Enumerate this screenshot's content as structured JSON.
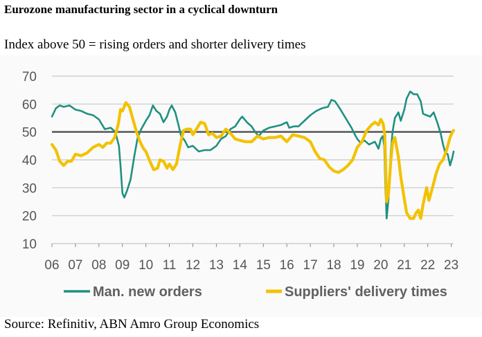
{
  "chart_data": {
    "type": "line",
    "title": "Eurozone manufacturing sector in a cyclical downturn",
    "subtitle": "Index above 50 = rising orders and shorter delivery times",
    "source": "Source: Refinitiv, ABN Amro Group Economics",
    "xlabel": "",
    "ylabel": "",
    "xlim": [
      2006,
      2023.1
    ],
    "ylim": [
      10,
      70
    ],
    "yticks": [
      10,
      20,
      30,
      40,
      50,
      60,
      70
    ],
    "xticks": [
      {
        "value": 2006,
        "label": "06"
      },
      {
        "value": 2007,
        "label": "07"
      },
      {
        "value": 2008,
        "label": "08"
      },
      {
        "value": 2009,
        "label": "09"
      },
      {
        "value": 2010,
        "label": "10"
      },
      {
        "value": 2011,
        "label": "11"
      },
      {
        "value": 2012,
        "label": "12"
      },
      {
        "value": 2013,
        "label": "13"
      },
      {
        "value": 2014,
        "label": "14"
      },
      {
        "value": 2015,
        "label": "15"
      },
      {
        "value": 2016,
        "label": "16"
      },
      {
        "value": 2017,
        "label": "17"
      },
      {
        "value": 2018,
        "label": "18"
      },
      {
        "value": 2019,
        "label": "19"
      },
      {
        "value": 2020,
        "label": "20"
      },
      {
        "value": 2021,
        "label": "21"
      },
      {
        "value": 2022,
        "label": "22"
      },
      {
        "value": 2023,
        "label": "23"
      }
    ],
    "reference_line": 50,
    "grid": true,
    "legend_position": "bottom",
    "series": [
      {
        "name": "Man. new orders",
        "color": "#1f9080",
        "points": [
          [
            2006.0,
            55.5
          ],
          [
            2006.17,
            58.5
          ],
          [
            2006.33,
            59.5
          ],
          [
            2006.5,
            59.0
          ],
          [
            2006.75,
            59.5
          ],
          [
            2007.0,
            58.0
          ],
          [
            2007.25,
            57.5
          ],
          [
            2007.5,
            56.5
          ],
          [
            2007.75,
            56.0
          ],
          [
            2008.0,
            54.5
          ],
          [
            2008.25,
            51.0
          ],
          [
            2008.5,
            51.5
          ],
          [
            2008.7,
            50.0
          ],
          [
            2008.85,
            45.0
          ],
          [
            2008.92,
            38.0
          ],
          [
            2009.0,
            28.0
          ],
          [
            2009.08,
            26.5
          ],
          [
            2009.2,
            29.0
          ],
          [
            2009.35,
            33.0
          ],
          [
            2009.5,
            41.0
          ],
          [
            2009.65,
            48.0
          ],
          [
            2009.8,
            51.0
          ],
          [
            2010.0,
            54.0
          ],
          [
            2010.15,
            56.0
          ],
          [
            2010.3,
            59.5
          ],
          [
            2010.45,
            57.5
          ],
          [
            2010.6,
            56.5
          ],
          [
            2010.75,
            53.5
          ],
          [
            2010.9,
            55.5
          ],
          [
            2011.0,
            58.0
          ],
          [
            2011.1,
            59.5
          ],
          [
            2011.25,
            57.0
          ],
          [
            2011.4,
            52.0
          ],
          [
            2011.5,
            48.5
          ],
          [
            2011.65,
            47.0
          ],
          [
            2011.8,
            44.5
          ],
          [
            2012.0,
            45.0
          ],
          [
            2012.25,
            43.0
          ],
          [
            2012.5,
            43.5
          ],
          [
            2012.75,
            43.5
          ],
          [
            2013.0,
            45.0
          ],
          [
            2013.2,
            47.5
          ],
          [
            2013.4,
            48.5
          ],
          [
            2013.6,
            51.0
          ],
          [
            2013.8,
            52.0
          ],
          [
            2014.0,
            54.5
          ],
          [
            2014.1,
            55.5
          ],
          [
            2014.3,
            53.5
          ],
          [
            2014.5,
            52.0
          ],
          [
            2014.65,
            50.0
          ],
          [
            2014.8,
            48.5
          ],
          [
            2015.0,
            50.5
          ],
          [
            2015.25,
            51.5
          ],
          [
            2015.5,
            52.0
          ],
          [
            2015.75,
            52.5
          ],
          [
            2016.0,
            53.5
          ],
          [
            2016.1,
            51.5
          ],
          [
            2016.3,
            52.0
          ],
          [
            2016.5,
            52.0
          ],
          [
            2016.75,
            54.0
          ],
          [
            2017.0,
            56.0
          ],
          [
            2017.25,
            57.5
          ],
          [
            2017.5,
            58.5
          ],
          [
            2017.75,
            59.0
          ],
          [
            2017.9,
            61.5
          ],
          [
            2018.05,
            61.0
          ],
          [
            2018.25,
            58.5
          ],
          [
            2018.5,
            55.0
          ],
          [
            2018.75,
            51.5
          ],
          [
            2018.9,
            49.0
          ],
          [
            2019.0,
            47.5
          ],
          [
            2019.15,
            46.0
          ],
          [
            2019.3,
            47.0
          ],
          [
            2019.5,
            45.5
          ],
          [
            2019.75,
            46.5
          ],
          [
            2019.9,
            44.0
          ],
          [
            2020.0,
            47.5
          ],
          [
            2020.08,
            48.5
          ],
          [
            2020.15,
            45.0
          ],
          [
            2020.2,
            30.0
          ],
          [
            2020.25,
            19.0
          ],
          [
            2020.33,
            26.0
          ],
          [
            2020.42,
            42.0
          ],
          [
            2020.5,
            50.0
          ],
          [
            2020.6,
            55.0
          ],
          [
            2020.75,
            57.0
          ],
          [
            2020.85,
            54.0
          ],
          [
            2021.0,
            58.0
          ],
          [
            2021.1,
            62.0
          ],
          [
            2021.25,
            64.5
          ],
          [
            2021.4,
            63.5
          ],
          [
            2021.55,
            63.5
          ],
          [
            2021.7,
            61.0
          ],
          [
            2021.8,
            56.5
          ],
          [
            2021.95,
            56.0
          ],
          [
            2022.1,
            55.5
          ],
          [
            2022.25,
            57.0
          ],
          [
            2022.4,
            53.5
          ],
          [
            2022.55,
            49.5
          ],
          [
            2022.65,
            45.5
          ],
          [
            2022.75,
            42.5
          ],
          [
            2022.85,
            42.0
          ],
          [
            2022.95,
            38.0
          ],
          [
            2023.05,
            41.0
          ],
          [
            2023.1,
            43.0
          ]
        ]
      },
      {
        "name": "Suppliers' delivery times",
        "color": "#f2c200",
        "points": [
          [
            2006.0,
            45.5
          ],
          [
            2006.17,
            43.5
          ],
          [
            2006.33,
            39.5
          ],
          [
            2006.5,
            38.0
          ],
          [
            2006.67,
            39.5
          ],
          [
            2006.83,
            39.5
          ],
          [
            2007.0,
            42.0
          ],
          [
            2007.25,
            41.5
          ],
          [
            2007.5,
            42.5
          ],
          [
            2007.75,
            44.5
          ],
          [
            2008.0,
            45.5
          ],
          [
            2008.17,
            44.5
          ],
          [
            2008.33,
            46.0
          ],
          [
            2008.5,
            46.0
          ],
          [
            2008.67,
            48.0
          ],
          [
            2008.83,
            53.0
          ],
          [
            2008.92,
            58.0
          ],
          [
            2009.0,
            57.5
          ],
          [
            2009.15,
            60.5
          ],
          [
            2009.3,
            59.0
          ],
          [
            2009.45,
            54.5
          ],
          [
            2009.6,
            50.0
          ],
          [
            2009.75,
            46.5
          ],
          [
            2009.9,
            44.0
          ],
          [
            2010.0,
            43.0
          ],
          [
            2010.17,
            39.5
          ],
          [
            2010.33,
            36.5
          ],
          [
            2010.5,
            37.0
          ],
          [
            2010.6,
            40.0
          ],
          [
            2010.75,
            39.5
          ],
          [
            2010.9,
            37.0
          ],
          [
            2011.0,
            38.5
          ],
          [
            2011.15,
            36.5
          ],
          [
            2011.3,
            38.5
          ],
          [
            2011.45,
            45.0
          ],
          [
            2011.6,
            50.5
          ],
          [
            2011.75,
            51.0
          ],
          [
            2011.9,
            51.0
          ],
          [
            2012.0,
            49.0
          ],
          [
            2012.15,
            51.0
          ],
          [
            2012.33,
            53.5
          ],
          [
            2012.5,
            53.0
          ],
          [
            2012.67,
            49.0
          ],
          [
            2012.83,
            49.5
          ],
          [
            2013.0,
            48.0
          ],
          [
            2013.2,
            48.5
          ],
          [
            2013.4,
            51.0
          ],
          [
            2013.6,
            49.5
          ],
          [
            2013.8,
            47.5
          ],
          [
            2014.0,
            47.0
          ],
          [
            2014.25,
            46.5
          ],
          [
            2014.5,
            46.5
          ],
          [
            2014.75,
            48.5
          ],
          [
            2015.0,
            47.5
          ],
          [
            2015.25,
            48.0
          ],
          [
            2015.5,
            48.0
          ],
          [
            2015.75,
            48.5
          ],
          [
            2016.0,
            46.5
          ],
          [
            2016.25,
            49.0
          ],
          [
            2016.5,
            48.5
          ],
          [
            2016.75,
            48.0
          ],
          [
            2017.0,
            46.5
          ],
          [
            2017.2,
            43.0
          ],
          [
            2017.4,
            40.5
          ],
          [
            2017.6,
            40.0
          ],
          [
            2017.8,
            37.5
          ],
          [
            2018.0,
            36.0
          ],
          [
            2018.2,
            35.5
          ],
          [
            2018.4,
            36.5
          ],
          [
            2018.6,
            38.0
          ],
          [
            2018.8,
            40.0
          ],
          [
            2019.0,
            44.5
          ],
          [
            2019.2,
            46.5
          ],
          [
            2019.4,
            50.5
          ],
          [
            2019.6,
            52.5
          ],
          [
            2019.75,
            53.5
          ],
          [
            2019.9,
            52.5
          ],
          [
            2020.0,
            54.5
          ],
          [
            2020.1,
            53.0
          ],
          [
            2020.17,
            49.0
          ],
          [
            2020.25,
            25.0
          ],
          [
            2020.33,
            28.0
          ],
          [
            2020.42,
            39.0
          ],
          [
            2020.5,
            46.0
          ],
          [
            2020.6,
            48.0
          ],
          [
            2020.75,
            41.0
          ],
          [
            2020.85,
            34.0
          ],
          [
            2021.0,
            26.0
          ],
          [
            2021.1,
            21.0
          ],
          [
            2021.25,
            19.0
          ],
          [
            2021.4,
            19.0
          ],
          [
            2021.5,
            21.0
          ],
          [
            2021.6,
            22.0
          ],
          [
            2021.7,
            19.0
          ],
          [
            2021.8,
            24.0
          ],
          [
            2021.95,
            30.0
          ],
          [
            2022.05,
            25.5
          ],
          [
            2022.2,
            30.0
          ],
          [
            2022.35,
            35.0
          ],
          [
            2022.5,
            38.5
          ],
          [
            2022.65,
            40.0
          ],
          [
            2022.8,
            43.5
          ],
          [
            2022.95,
            48.0
          ],
          [
            2023.05,
            50.0
          ],
          [
            2023.1,
            50.5
          ]
        ]
      }
    ]
  }
}
